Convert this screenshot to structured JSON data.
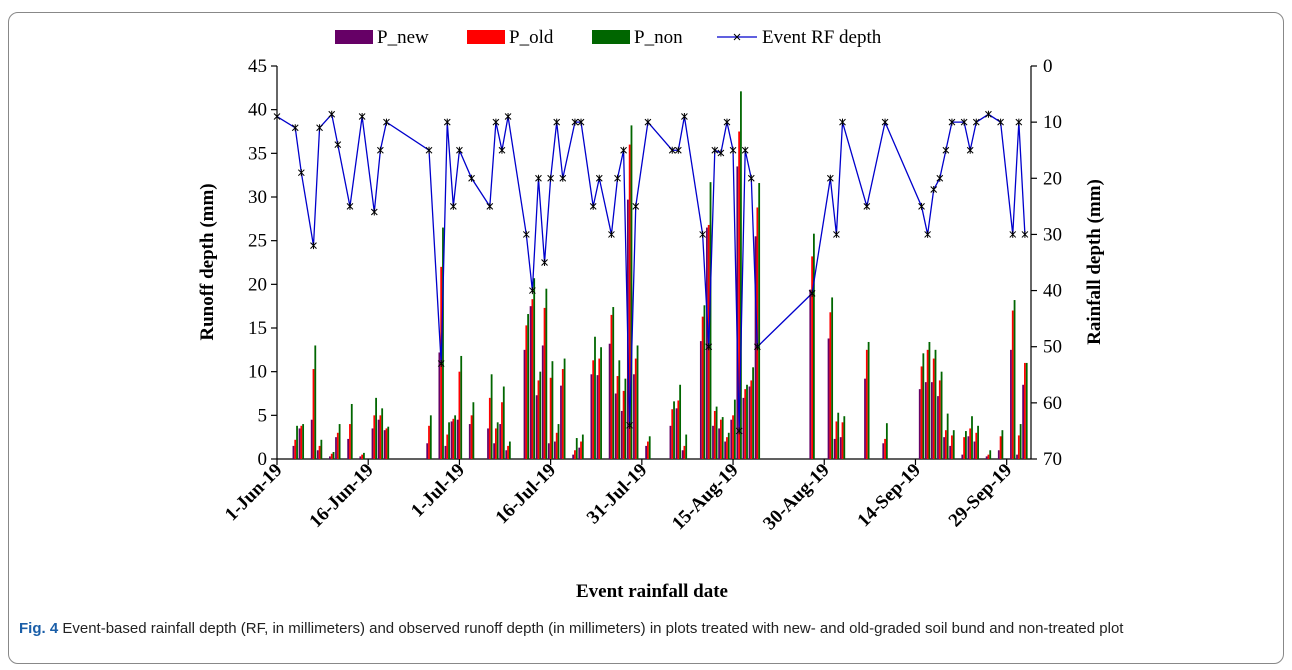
{
  "chart_data": {
    "type": "bar-line",
    "x_label": "Event rainfall date",
    "y_label": "Runoff depth (mm)",
    "y2_label": "Rainfall depth (mm)",
    "x": [
      "2019-06-01",
      "2019-06-04",
      "2019-06-05",
      "2019-06-07",
      "2019-06-08",
      "2019-06-10",
      "2019-06-11",
      "2019-06-13",
      "2019-06-15",
      "2019-06-17",
      "2019-06-18",
      "2019-06-19",
      "2019-06-26",
      "2019-06-28",
      "2019-06-29",
      "2019-06-30",
      "2019-07-01",
      "2019-07-03",
      "2019-07-06",
      "2019-07-07",
      "2019-07-08",
      "2019-07-09",
      "2019-07-12",
      "2019-07-13",
      "2019-07-14",
      "2019-07-15",
      "2019-07-16",
      "2019-07-17",
      "2019-07-18",
      "2019-07-20",
      "2019-07-21",
      "2019-07-23",
      "2019-07-24",
      "2019-07-26",
      "2019-07-27",
      "2019-07-28",
      "2019-07-29",
      "2019-07-30",
      "2019-08-01",
      "2019-08-05",
      "2019-08-06",
      "2019-08-07",
      "2019-08-10",
      "2019-08-11",
      "2019-08-12",
      "2019-08-13",
      "2019-08-14",
      "2019-08-15",
      "2019-08-16",
      "2019-08-17",
      "2019-08-18",
      "2019-08-19",
      "2019-08-28",
      "2019-08-31",
      "2019-09-01",
      "2019-09-02",
      "2019-09-06",
      "2019-09-09",
      "2019-09-15",
      "2019-09-16",
      "2019-09-17",
      "2019-09-18",
      "2019-09-19",
      "2019-09-20",
      "2019-09-22",
      "2019-09-23",
      "2019-09-24",
      "2019-09-26",
      "2019-09-28",
      "2019-09-30",
      "2019-10-01",
      "2019-10-02"
    ],
    "series": [
      {
        "name": "P_new",
        "color": "#660066",
        "values": [
          0,
          1.5,
          3.5,
          4.5,
          1,
          0.3,
          2.5,
          2.3,
          0.3,
          3.5,
          4.5,
          3.3,
          1.8,
          12.2,
          1.5,
          4.3,
          4.5,
          4,
          3.5,
          1.8,
          4,
          1,
          12.5,
          17.5,
          7.3,
          13,
          1.8,
          2,
          8.4,
          0.5,
          1.3,
          9.7,
          9.6,
          13.2,
          7.5,
          5.5,
          29.7,
          9.7,
          1.5,
          3.8,
          5.8,
          1,
          13.5,
          26.5,
          3.8,
          3.5,
          2,
          4.5,
          33.5,
          7,
          8.3,
          25.5,
          19.4,
          13.8,
          2.3,
          2.5,
          9.2,
          1.8,
          8,
          8.8,
          8.8,
          7.2,
          2.5,
          1.5,
          0.5,
          2.6,
          2,
          0.3,
          1,
          12.5,
          0.5,
          8.5
        ]
      },
      {
        "name": "P_old",
        "color": "#ff0000",
        "values": [
          0,
          2.2,
          3.8,
          10.3,
          1.5,
          0.6,
          3,
          4,
          0.5,
          5,
          5,
          3.5,
          3.8,
          22,
          2.8,
          4.6,
          10,
          5,
          7,
          3.5,
          6.5,
          1.5,
          15.3,
          18.3,
          9,
          17.3,
          9.3,
          3,
          10.3,
          1,
          2,
          11.3,
          11.5,
          16.5,
          9.5,
          7.8,
          36,
          11.5,
          2,
          5.7,
          6.7,
          1.5,
          16.3,
          26.8,
          5.5,
          4.5,
          2.5,
          5,
          37.5,
          8,
          9,
          28.8,
          23.2,
          16.8,
          4.3,
          4.2,
          12.5,
          2.3,
          10.6,
          12.5,
          11.5,
          9,
          3.3,
          2.7,
          2.5,
          3.5,
          3,
          0.5,
          2.6,
          17,
          2.7,
          11
        ]
      },
      {
        "name": "P_non",
        "color": "#006600",
        "values": [
          0,
          3.8,
          4,
          13,
          2.2,
          0.8,
          4,
          6.3,
          0.7,
          7,
          5.8,
          3.7,
          5,
          26.5,
          4.2,
          5,
          11.8,
          6.5,
          9.7,
          4.2,
          8.3,
          2,
          16.6,
          20.7,
          10,
          19.5,
          11.2,
          4,
          11.5,
          2.4,
          2.8,
          14,
          12.8,
          17.4,
          11.3,
          9.2,
          38.2,
          13,
          2.6,
          6.6,
          8.5,
          2.8,
          17.6,
          31.7,
          6,
          4.8,
          3,
          6.8,
          42.1,
          8.5,
          10.5,
          31.6,
          25.8,
          18.5,
          5.3,
          4.9,
          13.4,
          4.1,
          12.1,
          13.4,
          12.5,
          10,
          5.2,
          3.3,
          3.2,
          4.9,
          3.8,
          1,
          3.3,
          18.2,
          4,
          11
        ]
      },
      {
        "name": "Event RF depth",
        "color": "#0000cc",
        "axis": "y2",
        "values": [
          9,
          11,
          19,
          32,
          11,
          8.6,
          14,
          25,
          9,
          26,
          15,
          10,
          15,
          53,
          10,
          25,
          15,
          20,
          25,
          10,
          15,
          9,
          30,
          40,
          20,
          35,
          20,
          10,
          20,
          10,
          10,
          25,
          20,
          30,
          20,
          15,
          64,
          25,
          10,
          15,
          15,
          9,
          30,
          50,
          15,
          15.5,
          10,
          15,
          65,
          15,
          20,
          50,
          40.5,
          20,
          30,
          10,
          25,
          10,
          25,
          30,
          22,
          20,
          15,
          10,
          10,
          15,
          10,
          8.6,
          10,
          30,
          10,
          30
        ]
      }
    ],
    "xlim": [
      "2019-06-01",
      "2019-10-03"
    ],
    "xticks": [
      {
        "value": "2019-06-01",
        "label": "1-Jun-19"
      },
      {
        "value": "2019-06-16",
        "label": "16-Jun-19"
      },
      {
        "value": "2019-07-01",
        "label": "1-Jul-19"
      },
      {
        "value": "2019-07-16",
        "label": "16-Jul-19"
      },
      {
        "value": "2019-07-31",
        "label": "31-Jul-19"
      },
      {
        "value": "2019-08-15",
        "label": "15-Aug-19"
      },
      {
        "value": "2019-08-30",
        "label": "30-Aug-19"
      },
      {
        "value": "2019-09-14",
        "label": "14-Sep-19"
      },
      {
        "value": "2019-09-29",
        "label": "29-Sep-19"
      }
    ],
    "ylim": [
      0,
      45
    ],
    "yticks": [
      0,
      5,
      10,
      15,
      20,
      25,
      30,
      35,
      40,
      45
    ],
    "y2lim": [
      70,
      0
    ],
    "y2ticks": [
      0,
      10,
      20,
      30,
      40,
      50,
      60,
      70
    ],
    "legend": "top"
  },
  "caption": {
    "label": "Fig. 4",
    "text": "Event-based rainfall depth (RF, in millimeters) and observed runoff depth (in millimeters) in plots treated with new- and old-graded soil bund and non-treated plot"
  }
}
